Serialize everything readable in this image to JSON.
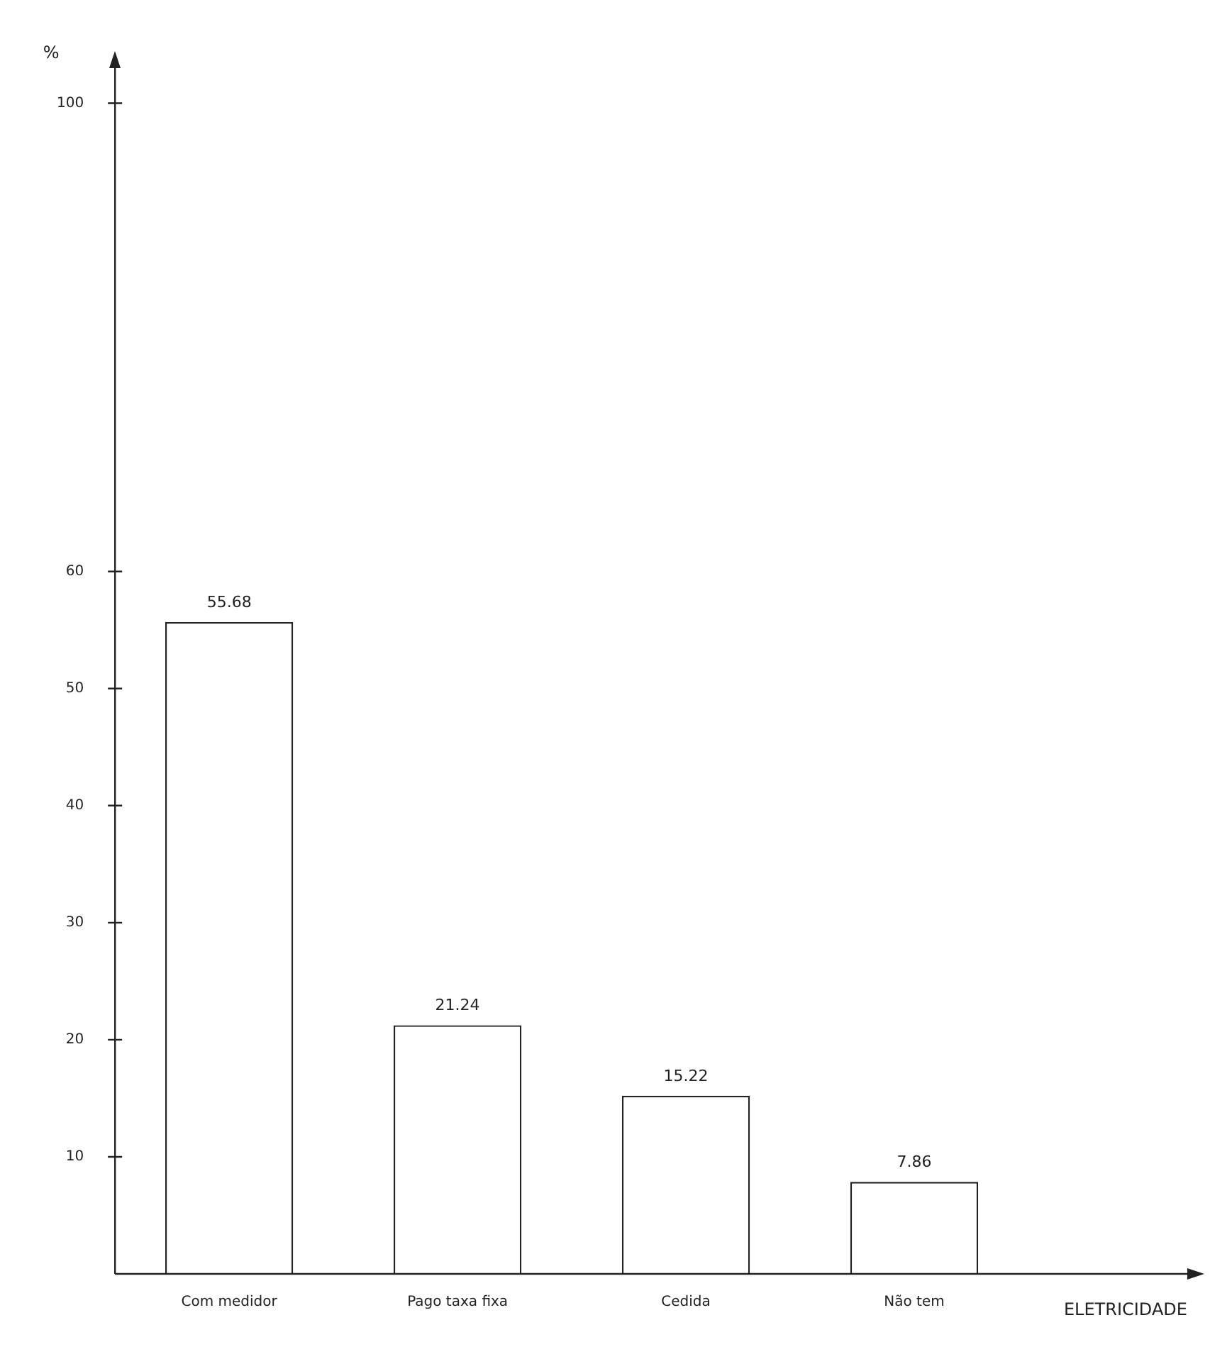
{
  "chart_data": {
    "type": "bar",
    "xlabel": "ELETRICIDADE",
    "ylabel": "%",
    "categories": [
      "Com medidor",
      "Pago taxa fixa",
      "Cedida",
      "Não tem"
    ],
    "values": [
      55.68,
      21.24,
      15.22,
      7.86
    ],
    "color": "#ffffff",
    "ylim": [
      0,
      103
    ],
    "yticks": [
      10,
      20,
      30,
      40,
      50,
      60,
      100
    ],
    "grid": false,
    "legend": false,
    "data_labels": true
  }
}
